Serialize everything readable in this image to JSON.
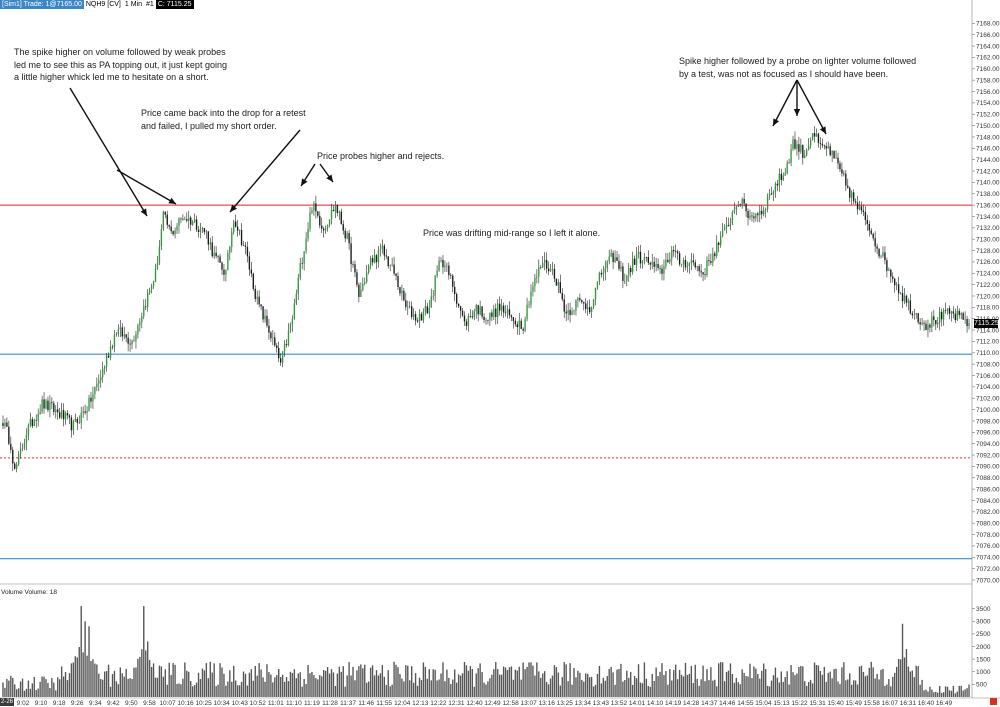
{
  "header": {
    "symbol_badge": "[Sim1] Trade: 1@7165.00",
    "instrument": "NQH9 [CV]",
    "timeframe": "1 Min",
    "counter": "#1",
    "last_label": "C: 7115.25"
  },
  "last_price_label": "7115.25",
  "volume_label": "Volume  Volume: 18",
  "date_badge": "2-26",
  "annotations": [
    {
      "id": "note-1",
      "text": "The spike higher on volume followed by weak probes\nled me to see this as PA topping out, it just kept going\na little higher whick led me to hesitate on a short."
    },
    {
      "id": "note-2",
      "text": "Price came back into the drop for a retest\nand failed, I pulled my short order."
    },
    {
      "id": "note-3",
      "text": "Price probes higher and rejects."
    },
    {
      "id": "note-4",
      "text": "Price was drifting mid-range so I left it alone."
    },
    {
      "id": "note-5",
      "text": "Spike higher followed by a probe on lighter volume followed\nby a test, was not as focused as I should have been."
    }
  ],
  "colors": {
    "resistance": "#e02020",
    "support": "#3a8ccf",
    "dotted": "#e03030",
    "up_candle": "#2e9a3a",
    "down_candle": "#1a1a1a",
    "volume": "#555555"
  },
  "chart_data": [
    {
      "type": "candlestick",
      "title": "NQH9 1 Min",
      "ylim": [
        7070.0,
        7170.0
      ],
      "y_ticks": [
        "7168.00",
        "7166.00",
        "7164.00",
        "7162.00",
        "7160.00",
        "7158.00",
        "7156.00",
        "7154.00",
        "7152.00",
        "7150.00",
        "7148.00",
        "7146.00",
        "7144.00",
        "7142.00",
        "7140.00",
        "7138.00",
        "7136.00",
        "7134.00",
        "7132.00",
        "7130.00",
        "7128.00",
        "7126.00",
        "7124.00",
        "7122.00",
        "7120.00",
        "7118.00",
        "7116.00",
        "7114.00",
        "7112.00",
        "7110.00",
        "7108.00",
        "7106.00",
        "7104.00",
        "7102.00",
        "7100.00",
        "7098.00",
        "7096.00",
        "7094.00",
        "7092.00",
        "7090.00",
        "7088.00",
        "7086.00",
        "7084.00",
        "7082.00",
        "7080.00",
        "7078.00",
        "7076.00",
        "7074.00",
        "7072.00",
        "7070.00"
      ],
      "x_ticks": [
        "9:02",
        "9:10",
        "9:18",
        "9:26",
        "9:34",
        "9:42",
        "9:50",
        "9:58",
        "10:07",
        "10:16",
        "10:25",
        "10:34",
        "10:43",
        "10:52",
        "11:01",
        "11:10",
        "11:19",
        "11:28",
        "11:37",
        "11:46",
        "11:55",
        "12:04",
        "12:13",
        "12:22",
        "12:31",
        "12:40",
        "12:49",
        "12:58",
        "13:07",
        "13:16",
        "13:25",
        "13:34",
        "13:43",
        "13:52",
        "14:01",
        "14:10",
        "14:19",
        "14:28",
        "14:37",
        "14:46",
        "14:55",
        "15:04",
        "15:13",
        "15:22",
        "15:31",
        "15:40",
        "15:49",
        "15:58",
        "16:07",
        "16:31",
        "16:40",
        "16:49"
      ],
      "horizontal_lines": [
        {
          "price": 7136.0,
          "style": "solid",
          "color": "#e02020"
        },
        {
          "price": 7109.75,
          "style": "solid",
          "color": "#3a8ccf"
        },
        {
          "price": 7091.5,
          "style": "dotted",
          "color": "#e03030"
        },
        {
          "price": 7073.75,
          "style": "solid",
          "color": "#3a8ccf"
        }
      ],
      "anchors": [
        [
          0,
          7098
        ],
        [
          4,
          7094
        ],
        [
          6,
          7089
        ],
        [
          12,
          7096
        ],
        [
          20,
          7101
        ],
        [
          26,
          7100
        ],
        [
          30,
          7099
        ],
        [
          36,
          7097
        ],
        [
          44,
          7101
        ],
        [
          50,
          7106
        ],
        [
          58,
          7114
        ],
        [
          66,
          7112
        ],
        [
          72,
          7118
        ],
        [
          78,
          7124
        ],
        [
          82,
          7134
        ],
        [
          86,
          7131
        ],
        [
          92,
          7134
        ],
        [
          98,
          7133
        ],
        [
          104,
          7131
        ],
        [
          108,
          7127
        ],
        [
          114,
          7124
        ],
        [
          118,
          7134
        ],
        [
          124,
          7128
        ],
        [
          130,
          7119
        ],
        [
          136,
          7114
        ],
        [
          142,
          7108
        ],
        [
          148,
          7116
        ],
        [
          152,
          7125
        ],
        [
          158,
          7136
        ],
        [
          164,
          7132
        ],
        [
          170,
          7136
        ],
        [
          176,
          7130
        ],
        [
          182,
          7120
        ],
        [
          188,
          7126
        ],
        [
          194,
          7128
        ],
        [
          200,
          7124
        ],
        [
          206,
          7118
        ],
        [
          212,
          7116
        ],
        [
          218,
          7118
        ],
        [
          224,
          7127
        ],
        [
          230,
          7122
        ],
        [
          236,
          7115
        ],
        [
          242,
          7118
        ],
        [
          248,
          7116
        ],
        [
          254,
          7118
        ],
        [
          260,
          7116
        ],
        [
          266,
          7115
        ],
        [
          270,
          7121
        ],
        [
          276,
          7126
        ],
        [
          282,
          7124
        ],
        [
          288,
          7117
        ],
        [
          294,
          7119
        ],
        [
          300,
          7118
        ],
        [
          306,
          7124
        ],
        [
          312,
          7127
        ],
        [
          318,
          7123
        ],
        [
          324,
          7127
        ],
        [
          330,
          7126
        ],
        [
          336,
          7124
        ],
        [
          342,
          7128
        ],
        [
          346,
          7126
        ],
        [
          352,
          7126
        ],
        [
          358,
          7124
        ],
        [
          364,
          7128
        ],
        [
          370,
          7132
        ],
        [
          376,
          7137
        ],
        [
          382,
          7134
        ],
        [
          388,
          7135
        ],
        [
          394,
          7139
        ],
        [
          400,
          7142
        ],
        [
          404,
          7147
        ],
        [
          410,
          7145
        ],
        [
          414,
          7149
        ],
        [
          418,
          7146
        ],
        [
          422,
          7146
        ],
        [
          428,
          7142
        ],
        [
          432,
          7139
        ],
        [
          436,
          7136
        ],
        [
          442,
          7133
        ],
        [
          448,
          7128
        ],
        [
          454,
          7124
        ],
        [
          460,
          7120
        ],
        [
          466,
          7117
        ],
        [
          472,
          7115
        ],
        [
          478,
          7116
        ],
        [
          484,
          7117
        ],
        [
          490,
          7116
        ],
        [
          494,
          7115.25
        ]
      ]
    },
    {
      "type": "bar",
      "title": "Volume",
      "ylim": [
        0,
        4000
      ],
      "y_ticks": [
        "3500",
        "3000",
        "2500",
        "2000",
        "1500",
        "1000",
        "500"
      ],
      "spikes": [
        [
          40,
          3600
        ],
        [
          42,
          3000
        ],
        [
          44,
          2800
        ],
        [
          72,
          3600
        ],
        [
          74,
          2200
        ],
        [
          460,
          2900
        ],
        [
          462,
          1900
        ]
      ],
      "typical_range": [
        400,
        1400
      ]
    }
  ]
}
